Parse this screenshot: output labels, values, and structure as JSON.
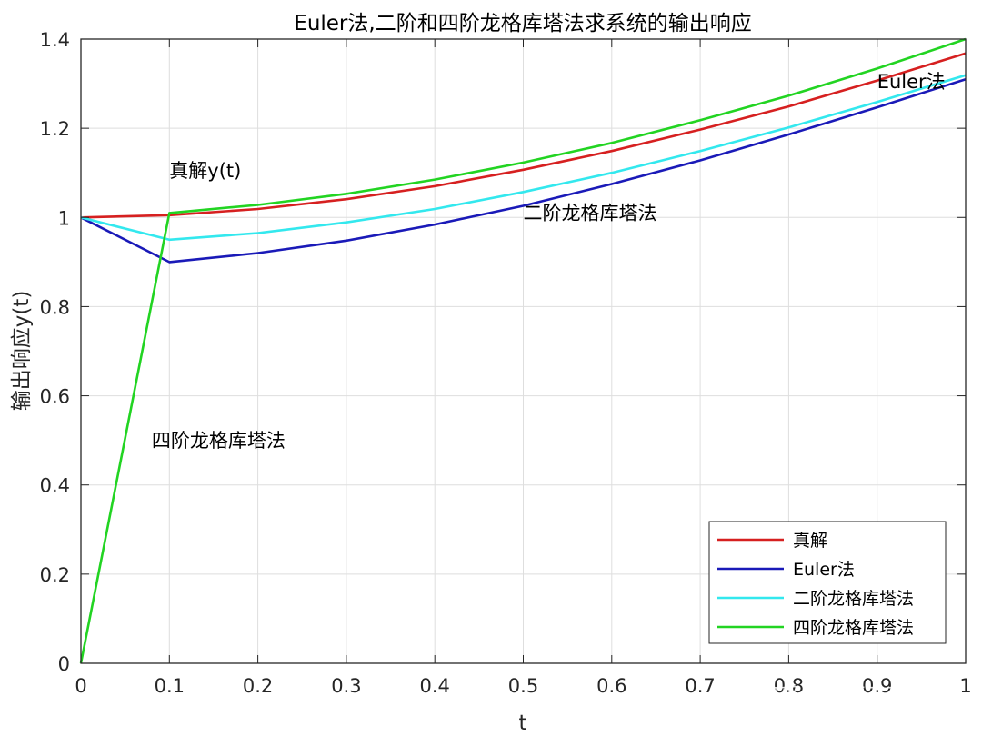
{
  "chart_data": {
    "type": "line",
    "title": "Euler法,二阶和四阶龙格库塔法求系统的输出响应",
    "xlabel": "t",
    "ylabel": "输出响应y(t)",
    "xlim": [
      0,
      1
    ],
    "ylim": [
      0,
      1.4
    ],
    "xticks": [
      "0",
      "0.1",
      "0.2",
      "0.3",
      "0.4",
      "0.5",
      "0.6",
      "0.7",
      "0.8",
      "0.9",
      "1"
    ],
    "yticks": [
      "0",
      "0.2",
      "0.4",
      "0.6",
      "0.8",
      "1",
      "1.2",
      "1.4"
    ],
    "grid": true,
    "legend_position": "bottom-right",
    "x": [
      0,
      0.1,
      0.2,
      0.3,
      0.4,
      0.5,
      0.6,
      0.7,
      0.8,
      0.9,
      1.0
    ],
    "series": [
      {
        "name": "真解",
        "color": "#d62020",
        "values": [
          1.0,
          1.005,
          1.019,
          1.041,
          1.07,
          1.107,
          1.149,
          1.197,
          1.249,
          1.307,
          1.368
        ]
      },
      {
        "name": "Euler法",
        "color": "#1a1ab8",
        "values": [
          1.0,
          0.9,
          0.92,
          0.948,
          0.984,
          1.026,
          1.075,
          1.128,
          1.186,
          1.247,
          1.31
        ]
      },
      {
        "name": "二阶龙格库塔法",
        "color": "#33e8ee",
        "values": [
          1.0,
          0.95,
          0.965,
          0.989,
          1.019,
          1.057,
          1.1,
          1.149,
          1.202,
          1.259,
          1.319
        ]
      },
      {
        "name": "四阶龙格库塔法",
        "color": "#22d422",
        "values": [
          0.0,
          1.01,
          1.028,
          1.053,
          1.085,
          1.123,
          1.167,
          1.218,
          1.273,
          1.334,
          1.4
        ]
      }
    ],
    "annotations": [
      {
        "text": "Euler法",
        "x": 0.9,
        "y": 1.29
      },
      {
        "text": "真解y(t)",
        "x": 0.1,
        "y": 1.09
      },
      {
        "text": "二阶龙格库塔法",
        "x": 0.5,
        "y": 0.995
      },
      {
        "text": "四阶龙格库塔法",
        "x": 0.08,
        "y": 0.485
      }
    ]
  },
  "watermark": "知乎 @龙行天下2288"
}
